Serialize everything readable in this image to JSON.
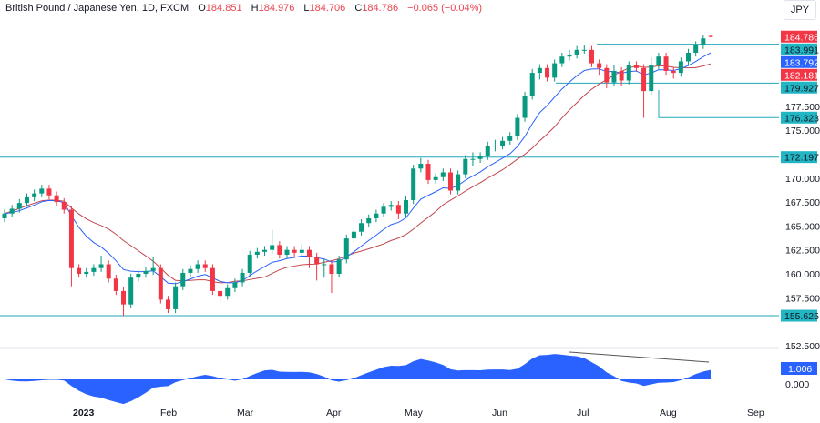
{
  "header": {
    "symbol": "British Pound / Japanese Yen, 1D, FXCM",
    "open_label": "O",
    "open": "184.851",
    "high_label": "H",
    "high": "184.976",
    "low_label": "L",
    "low": "184.706",
    "close_label": "C",
    "close": "184.786",
    "change": "−0.065 (−0.04%)"
  },
  "currency_button": "JPY",
  "colors": {
    "up": "#089981",
    "down": "#f23645",
    "fast_ma": "#2962ff",
    "slow_ma": "#c2464e",
    "level_line": "#22a7b8",
    "oscillator": "#2962ff"
  },
  "chart_data": {
    "type": "candlestick",
    "title": "British Pound / Japanese Yen, 1D, FXCM",
    "x_tick_labels": [
      "2023",
      "Feb",
      "Mar",
      "Apr",
      "May",
      "Jun",
      "Jul",
      "Aug",
      "Sep"
    ],
    "y_tick_labels": [
      "177.500",
      "175.000",
      "170.000",
      "167.500",
      "165.000",
      "162.500",
      "160.000",
      "157.500",
      "152.500"
    ],
    "y_ticks": [
      177.5,
      175,
      170,
      167.5,
      165,
      162.5,
      160,
      157.5,
      152.5
    ],
    "ylim": [
      151.5,
      186.5
    ],
    "ohlc": [
      [
        165.8,
        166.7,
        165.4,
        166.3
      ],
      [
        166.3,
        167.2,
        165.9,
        166.8
      ],
      [
        166.8,
        167.8,
        166.4,
        167.4
      ],
      [
        167.4,
        168.4,
        167.0,
        168.0
      ],
      [
        168.0,
        168.8,
        167.6,
        168.4
      ],
      [
        168.4,
        169.3,
        168.0,
        168.9
      ],
      [
        168.9,
        169.3,
        167.8,
        168.2
      ],
      [
        168.2,
        168.6,
        167.1,
        167.5
      ],
      [
        167.5,
        167.9,
        166.3,
        166.7
      ],
      [
        166.7,
        167.1,
        158.7,
        160.6
      ],
      [
        160.6,
        161.0,
        159.6,
        160.0
      ],
      [
        160.0,
        160.6,
        159.6,
        160.2
      ],
      [
        160.2,
        161.0,
        159.8,
        160.6
      ],
      [
        160.6,
        161.9,
        160.2,
        161.0
      ],
      [
        161.0,
        161.4,
        159.1,
        159.5
      ],
      [
        159.5,
        159.9,
        157.8,
        158.2
      ],
      [
        158.2,
        158.6,
        155.6,
        156.8
      ],
      [
        156.8,
        160.0,
        156.4,
        159.6
      ],
      [
        159.6,
        160.4,
        159.2,
        160.0
      ],
      [
        160.0,
        160.7,
        159.6,
        160.3
      ],
      [
        160.3,
        161.8,
        159.9,
        160.6
      ],
      [
        160.6,
        161.0,
        156.9,
        157.3
      ],
      [
        157.3,
        157.7,
        155.9,
        156.3
      ],
      [
        156.3,
        159.1,
        155.9,
        158.7
      ],
      [
        158.7,
        160.5,
        158.3,
        160.1
      ],
      [
        160.1,
        160.9,
        159.7,
        160.5
      ],
      [
        160.5,
        161.4,
        160.1,
        161.0
      ],
      [
        161.0,
        161.4,
        160.2,
        160.6
      ],
      [
        160.6,
        161.0,
        157.8,
        158.2
      ],
      [
        158.2,
        158.6,
        157.0,
        157.7
      ],
      [
        157.7,
        158.9,
        157.3,
        158.5
      ],
      [
        158.5,
        159.5,
        158.1,
        159.1
      ],
      [
        159.1,
        160.5,
        158.7,
        160.1
      ],
      [
        160.1,
        162.4,
        159.7,
        162.0
      ],
      [
        162.0,
        162.7,
        161.6,
        162.3
      ],
      [
        162.3,
        162.9,
        161.9,
        162.5
      ],
      [
        162.5,
        164.6,
        162.1,
        163.0
      ],
      [
        163.0,
        163.4,
        161.6,
        162.0
      ],
      [
        162.0,
        162.9,
        161.6,
        162.5
      ],
      [
        162.5,
        162.9,
        161.8,
        162.2
      ],
      [
        162.2,
        163.1,
        161.8,
        162.5
      ],
      [
        162.5,
        162.9,
        160.6,
        161.8
      ],
      [
        161.8,
        162.2,
        159.3,
        161.0
      ],
      [
        161.0,
        161.6,
        159.6,
        161.0
      ],
      [
        161.0,
        161.4,
        158.0,
        160.0
      ],
      [
        160.0,
        161.9,
        159.6,
        161.5
      ],
      [
        161.5,
        164.1,
        161.1,
        163.7
      ],
      [
        163.7,
        164.8,
        163.3,
        164.4
      ],
      [
        164.4,
        165.7,
        164.0,
        165.3
      ],
      [
        165.3,
        166.2,
        164.9,
        165.8
      ],
      [
        165.8,
        166.7,
        165.4,
        166.3
      ],
      [
        166.3,
        167.4,
        165.9,
        167.0
      ],
      [
        167.0,
        167.6,
        166.6,
        167.2
      ],
      [
        167.2,
        167.6,
        165.7,
        166.3
      ],
      [
        166.3,
        168.1,
        165.9,
        167.7
      ],
      [
        167.7,
        171.4,
        167.3,
        171.0
      ],
      [
        171.0,
        172.1,
        170.6,
        171.5
      ],
      [
        171.5,
        171.9,
        169.4,
        169.8
      ],
      [
        169.8,
        170.5,
        169.4,
        170.1
      ],
      [
        170.1,
        171.0,
        169.7,
        170.6
      ],
      [
        170.6,
        171.0,
        168.3,
        168.7
      ],
      [
        168.7,
        170.8,
        168.3,
        170.4
      ],
      [
        170.4,
        172.4,
        170.0,
        172.0
      ],
      [
        172.0,
        172.7,
        171.3,
        172.0
      ],
      [
        172.0,
        172.7,
        171.6,
        172.3
      ],
      [
        172.3,
        173.8,
        171.9,
        173.4
      ],
      [
        173.4,
        174.0,
        172.8,
        173.4
      ],
      [
        173.4,
        174.3,
        173.0,
        173.9
      ],
      [
        173.9,
        174.8,
        173.5,
        174.4
      ],
      [
        174.4,
        176.7,
        174.0,
        176.3
      ],
      [
        176.3,
        179.0,
        175.9,
        178.6
      ],
      [
        178.6,
        181.4,
        178.2,
        181.0
      ],
      [
        181.0,
        181.9,
        180.3,
        181.5
      ],
      [
        181.5,
        181.9,
        180.1,
        180.5
      ],
      [
        180.5,
        182.4,
        180.1,
        182.0
      ],
      [
        182.0,
        183.1,
        181.6,
        182.7
      ],
      [
        182.7,
        183.4,
        182.3,
        182.9
      ],
      [
        182.9,
        183.8,
        182.5,
        183.4
      ],
      [
        183.4,
        183.9,
        183.0,
        183.4
      ],
      [
        183.4,
        183.8,
        181.6,
        182.0
      ],
      [
        182.0,
        182.4,
        180.8,
        181.5
      ],
      [
        181.5,
        181.9,
        179.4,
        180.0
      ],
      [
        180.0,
        181.8,
        179.6,
        181.2
      ],
      [
        181.2,
        181.6,
        179.6,
        180.2
      ],
      [
        180.2,
        182.2,
        179.8,
        181.8
      ],
      [
        181.8,
        182.2,
        181.1,
        181.5
      ],
      [
        181.5,
        181.9,
        176.3,
        179.1
      ],
      [
        179.1,
        182.6,
        178.7,
        181.8
      ],
      [
        181.8,
        183.1,
        181.4,
        182.7
      ],
      [
        182.7,
        183.1,
        180.8,
        181.2
      ],
      [
        181.2,
        181.6,
        180.4,
        181.0
      ],
      [
        181.0,
        182.6,
        180.6,
        182.2
      ],
      [
        182.2,
        183.5,
        181.8,
        183.1
      ],
      [
        183.1,
        184.3,
        182.7,
        183.9
      ],
      [
        183.9,
        185.0,
        183.5,
        184.6
      ],
      [
        184.851,
        184.976,
        184.706,
        184.786
      ]
    ],
    "price_tags": [
      {
        "label": "184.786",
        "value": 184.786,
        "color": "#f23645"
      },
      {
        "label": "183.991",
        "value": 183.991,
        "color": "#22b5c4"
      },
      {
        "label": "183.792",
        "value": 183.792,
        "color": "#2962ff"
      },
      {
        "label": "182.181",
        "value": 182.181,
        "color": "#f23645"
      },
      {
        "label": "179.927",
        "value": 179.927,
        "color": "#22b5c4"
      },
      {
        "label": "176.323",
        "value": 176.323,
        "color": "#22b5c4"
      },
      {
        "label": "172.197",
        "value": 172.197,
        "color": "#22b5c4"
      },
      {
        "label": "155.625",
        "value": 155.625,
        "color": "#22b5c4"
      }
    ],
    "oscillator": {
      "value_label": "1.006",
      "zero_label": "0.000"
    }
  }
}
